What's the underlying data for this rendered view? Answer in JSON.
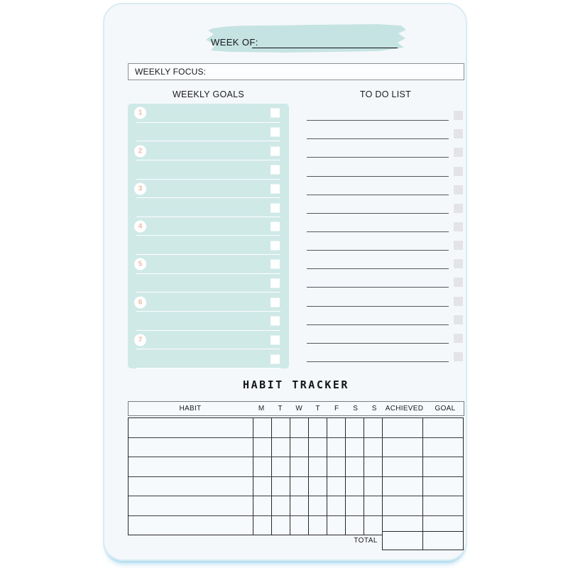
{
  "header": {
    "week_of_label": "WEEK OF:",
    "brush_color": "#c5e3e2"
  },
  "weekly_focus": {
    "label": "WEEKLY FOCUS:"
  },
  "weekly_goals": {
    "title": "WEEKLY GOALS",
    "rows": [
      "1",
      "",
      "2",
      "",
      "3",
      "",
      "4",
      "",
      "5",
      "",
      "6",
      "",
      "7",
      ""
    ],
    "panel_color": "#cfe9e7",
    "number_color": "#f1baa5"
  },
  "todo_list": {
    "title": "TO DO LIST",
    "line_count": 14,
    "checkbox_color": "#e4e4e7",
    "line_color": "#55555d"
  },
  "habit_tracker": {
    "title": "HABIT TRACKER",
    "columns": [
      "HABIT",
      "M",
      "T",
      "W",
      "T",
      "F",
      "S",
      "S",
      "ACHIEVED",
      "GOAL"
    ],
    "body_row_count": 6,
    "total_label": "TOTAL"
  },
  "page_colors": {
    "background": "#f5f8fb",
    "edge_blue": "#d9ecf4",
    "table_border": "#26262a"
  }
}
